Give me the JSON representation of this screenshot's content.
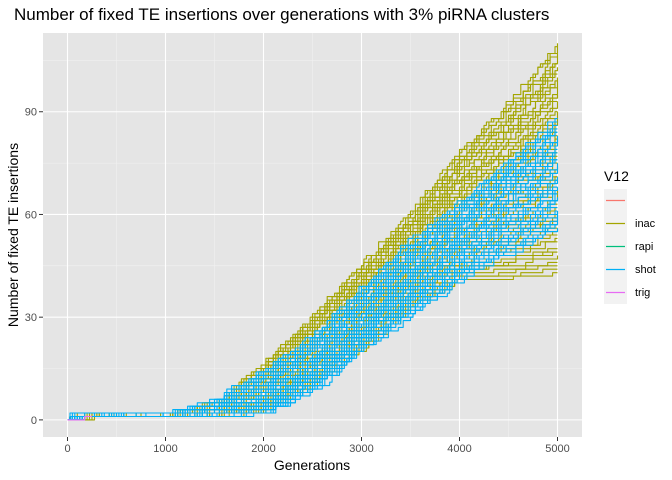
{
  "chart_data": {
    "type": "line",
    "title": "Number of fixed TE insertions over generations with 3% piRNA clusters",
    "xlabel": "Generations",
    "ylabel": "Number of fixed TE insertions",
    "xlim": [
      -250,
      5250
    ],
    "ylim": [
      -5,
      113
    ],
    "x_ticks": [
      0,
      1000,
      2000,
      3000,
      4000,
      5000
    ],
    "x_tick_labels": [
      "0",
      "1000",
      "2000",
      "3000",
      "4000",
      "5000"
    ],
    "y_ticks": [
      0,
      30,
      60,
      90
    ],
    "y_tick_labels": [
      "0",
      "30",
      "60",
      "90"
    ],
    "grid": true,
    "background": "#E5E5E5",
    "legend": {
      "title": "V12",
      "position": "right",
      "entries": [
        {
          "label": "",
          "color": "#F8766D"
        },
        {
          "label": "inac",
          "color": "#A3A500"
        },
        {
          "label": "rapi",
          "color": "#00BF7D"
        },
        {
          "label": "shot",
          "color": "#00B0F6"
        },
        {
          "label": "trig",
          "color": "#E76BF3"
        }
      ]
    },
    "series": [
      {
        "group": "inac",
        "color": "#A3A500",
        "replicates": 60,
        "values": {
          "x": [
            0,
            1000,
            1500,
            2000,
            2500,
            3000,
            3500,
            4000,
            4500,
            5000
          ],
          "y_min": [
            0,
            0,
            0,
            2,
            10,
            20,
            32,
            40,
            40,
            42
          ],
          "y_median": [
            0,
            0,
            1,
            5,
            17,
            30,
            44,
            57,
            67,
            75
          ],
          "y_max": [
            0,
            1,
            4,
            16,
            30,
            45,
            60,
            78,
            92,
            109
          ]
        }
      },
      {
        "group": "shot",
        "color": "#00B0F6",
        "replicates": 40,
        "values": {
          "x": [
            0,
            1000,
            1500,
            2000,
            2500,
            3000,
            3500,
            4000,
            4500,
            5000
          ],
          "y_min": [
            0,
            0,
            0,
            1,
            8,
            20,
            30,
            40,
            48,
            55
          ],
          "y_median": [
            0,
            0,
            1,
            5,
            15,
            27,
            40,
            52,
            62,
            70
          ],
          "y_max": [
            0,
            1,
            5,
            14,
            24,
            38,
            52,
            63,
            75,
            88
          ]
        }
      },
      {
        "group": "trig",
        "color": "#E76BF3",
        "replicates": 1,
        "values": {
          "x": [
            0,
            250
          ],
          "y_min": [
            0,
            0
          ],
          "y_median": [
            0,
            0
          ],
          "y_max": [
            0,
            0
          ]
        }
      }
    ]
  }
}
